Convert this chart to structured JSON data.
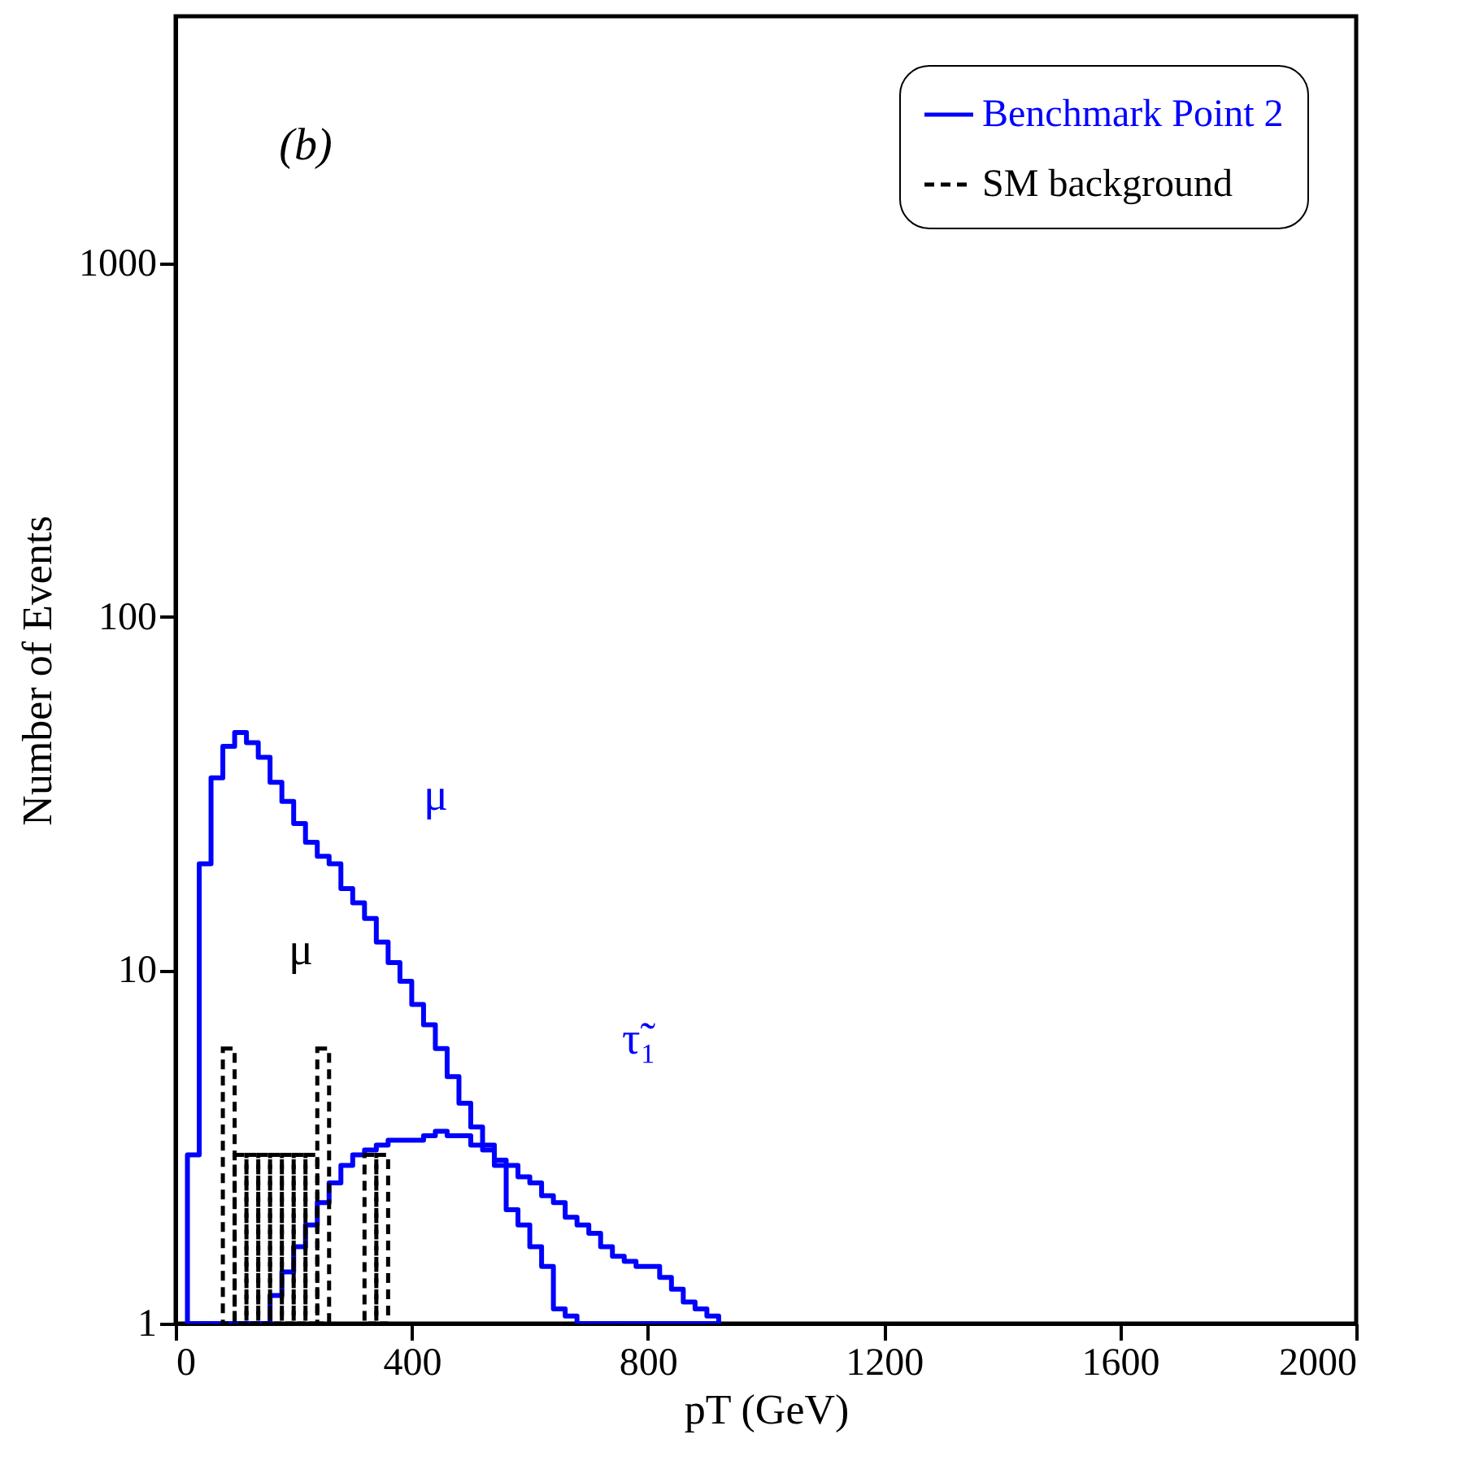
{
  "chart_data": {
    "type": "histogram",
    "xlabel": "pT (GeV)",
    "ylabel": "Number of Events",
    "xlim": [
      0,
      2000
    ],
    "xticks": [
      0,
      400,
      800,
      1200,
      1600,
      2000
    ],
    "ylim": [
      1,
      5000
    ],
    "yticks": [
      1,
      10,
      100,
      1000
    ],
    "log": true,
    "grid": false,
    "legend": "top right",
    "bins": [
      20,
      40,
      60,
      80,
      100,
      120,
      140,
      160,
      180,
      200,
      220,
      240,
      260,
      280,
      300,
      320,
      340,
      360,
      380,
      400,
      420,
      440,
      460,
      480,
      500,
      520,
      540,
      560,
      580,
      600,
      620,
      640,
      660,
      680,
      700,
      720,
      740,
      760,
      780,
      800,
      820,
      840,
      860,
      880,
      900,
      920
    ],
    "series": [
      {
        "name": "Benchmark Point 2",
        "color": "#0000ff",
        "line_style": "solid",
        "values": [
          3,
          20,
          35,
          43,
          47,
          44,
          40,
          34,
          30,
          26,
          23,
          21,
          20,
          17,
          15.5,
          14,
          12,
          10.5,
          9.3,
          8,
          7,
          6,
          5,
          4.2,
          3.6,
          3.2,
          2.8,
          2.1,
          1.9,
          1.65,
          1.45,
          1.1,
          1.05,
          null,
          null,
          null,
          null,
          null,
          null,
          null,
          null,
          null,
          null,
          null,
          null
        ]
      },
      {
        "color": "#0000ff",
        "line_style": "solid",
        "values": [
          null,
          null,
          null,
          null,
          null,
          null,
          null,
          1.2,
          1.4,
          1.65,
          1.9,
          2.2,
          2.5,
          2.8,
          3.0,
          3.1,
          3.2,
          3.3,
          3.3,
          3.3,
          3.4,
          3.5,
          3.4,
          3.4,
          3.2,
          3.1,
          2.9,
          2.8,
          2.6,
          2.5,
          2.3,
          2.2,
          2.0,
          1.9,
          1.8,
          1.65,
          1.55,
          1.5,
          1.45,
          1.45,
          1.35,
          1.25,
          1.15,
          1.1,
          1.05
        ]
      },
      {
        "name": "SM background",
        "color": "#000000",
        "line_style": "dashed",
        "values": [
          null,
          null,
          null,
          6,
          3,
          3,
          3,
          3,
          3,
          3,
          3,
          6,
          null,
          null,
          null,
          3,
          3,
          null,
          null,
          null,
          null,
          null,
          null,
          null,
          null,
          null,
          null,
          null,
          null,
          null,
          null,
          null,
          null,
          null,
          null,
          null,
          null,
          null,
          null,
          null,
          null,
          null,
          null,
          null,
          null
        ]
      }
    ],
    "annotations": [
      "(b)",
      "μ",
      "μ",
      "τ̃₁"
    ]
  }
}
